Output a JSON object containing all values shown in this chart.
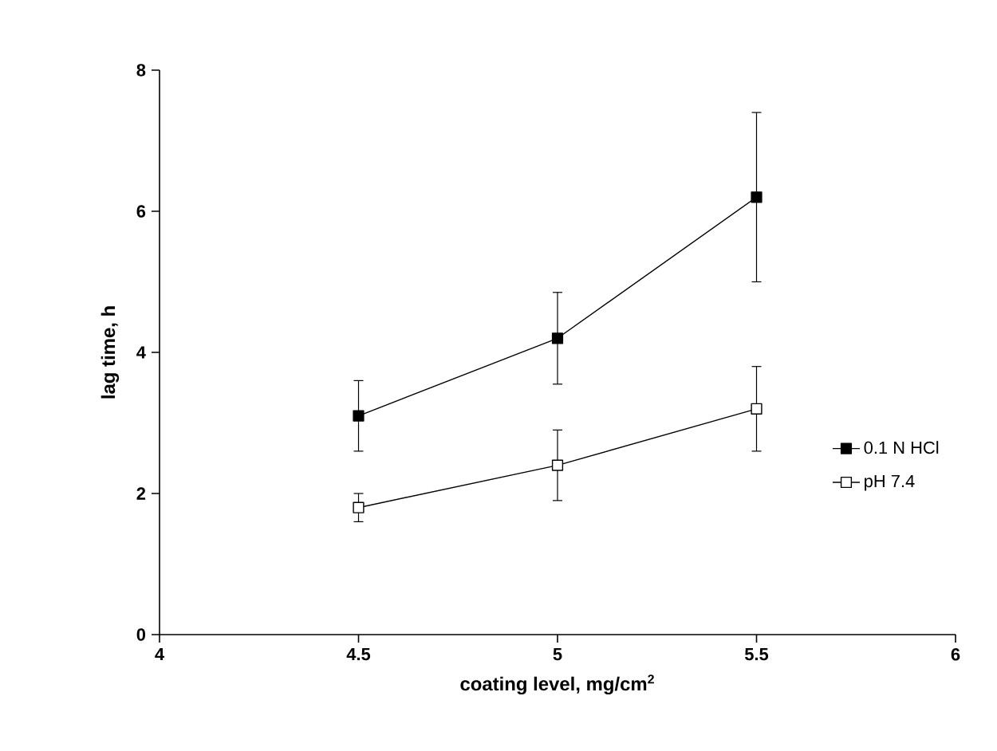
{
  "chart_data": {
    "type": "line",
    "xlabel": "coating level, mg/cm$^{2}$",
    "ylabel": "lag time, h",
    "x": [
      4.5,
      5,
      5.5
    ],
    "series": [
      {
        "name": "0.1 N HCl",
        "color": "#000000",
        "values": [
          3.1,
          4.2,
          6.2
        ],
        "errors": [
          0.5,
          0.65,
          1.2
        ]
      },
      {
        "name": "pH 7.4",
        "color": "#000000",
        "values": [
          1.8,
          2.4,
          3.2
        ],
        "errors": [
          0.2,
          0.5,
          0.6
        ]
      }
    ],
    "xlim": [
      4,
      6
    ],
    "ylim": [
      0,
      8
    ],
    "xticks": [
      4,
      4.5,
      5,
      5.5,
      6
    ],
    "yticks": [
      0,
      2,
      4,
      6,
      8
    ],
    "grid": false,
    "legend": "right",
    "marker": "square",
    "line_style": "solid"
  }
}
